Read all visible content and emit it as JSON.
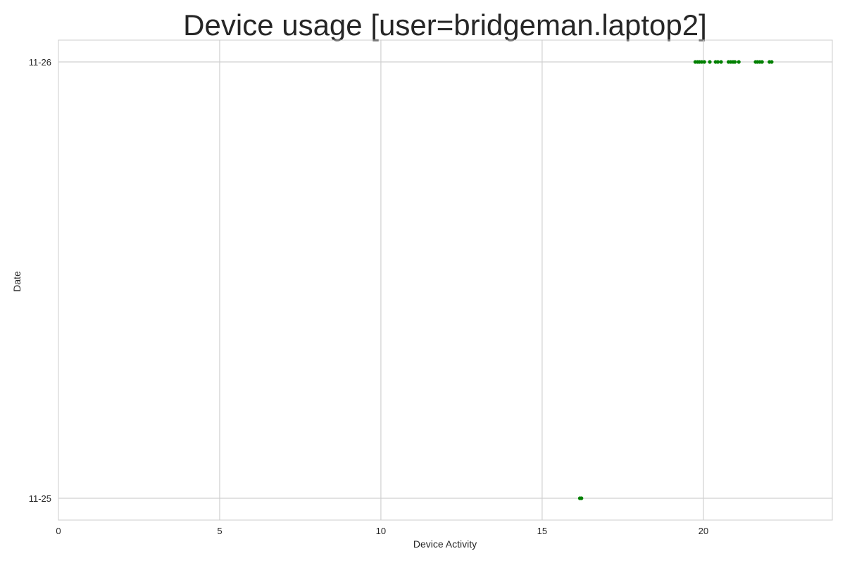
{
  "chart_data": {
    "type": "scatter",
    "title": "Device usage [user=bridgeman.laptop2]",
    "xlabel": "Device Activity",
    "ylabel": "Date",
    "xlim": [
      0,
      24
    ],
    "x_ticks": [
      0,
      5,
      10,
      15,
      20
    ],
    "y_categories": [
      "11-25",
      "11-26"
    ],
    "grid": true,
    "point_color": "#008000",
    "grid_color": "#d0d0d0",
    "series": [
      {
        "points": [
          {
            "x": 16.17,
            "y": "11-25"
          },
          {
            "x": 16.22,
            "y": "11-25"
          },
          {
            "x": 19.75,
            "y": "11-26"
          },
          {
            "x": 19.82,
            "y": "11-26"
          },
          {
            "x": 19.88,
            "y": "11-26"
          },
          {
            "x": 19.95,
            "y": "11-26"
          },
          {
            "x": 20.03,
            "y": "11-26"
          },
          {
            "x": 20.2,
            "y": "11-26"
          },
          {
            "x": 20.38,
            "y": "11-26"
          },
          {
            "x": 20.45,
            "y": "11-26"
          },
          {
            "x": 20.55,
            "y": "11-26"
          },
          {
            "x": 20.78,
            "y": "11-26"
          },
          {
            "x": 20.85,
            "y": "11-26"
          },
          {
            "x": 20.92,
            "y": "11-26"
          },
          {
            "x": 20.98,
            "y": "11-26"
          },
          {
            "x": 21.1,
            "y": "11-26"
          },
          {
            "x": 21.62,
            "y": "11-26"
          },
          {
            "x": 21.68,
            "y": "11-26"
          },
          {
            "x": 21.75,
            "y": "11-26"
          },
          {
            "x": 21.82,
            "y": "11-26"
          },
          {
            "x": 22.05,
            "y": "11-26"
          },
          {
            "x": 22.12,
            "y": "11-26"
          }
        ]
      }
    ]
  }
}
